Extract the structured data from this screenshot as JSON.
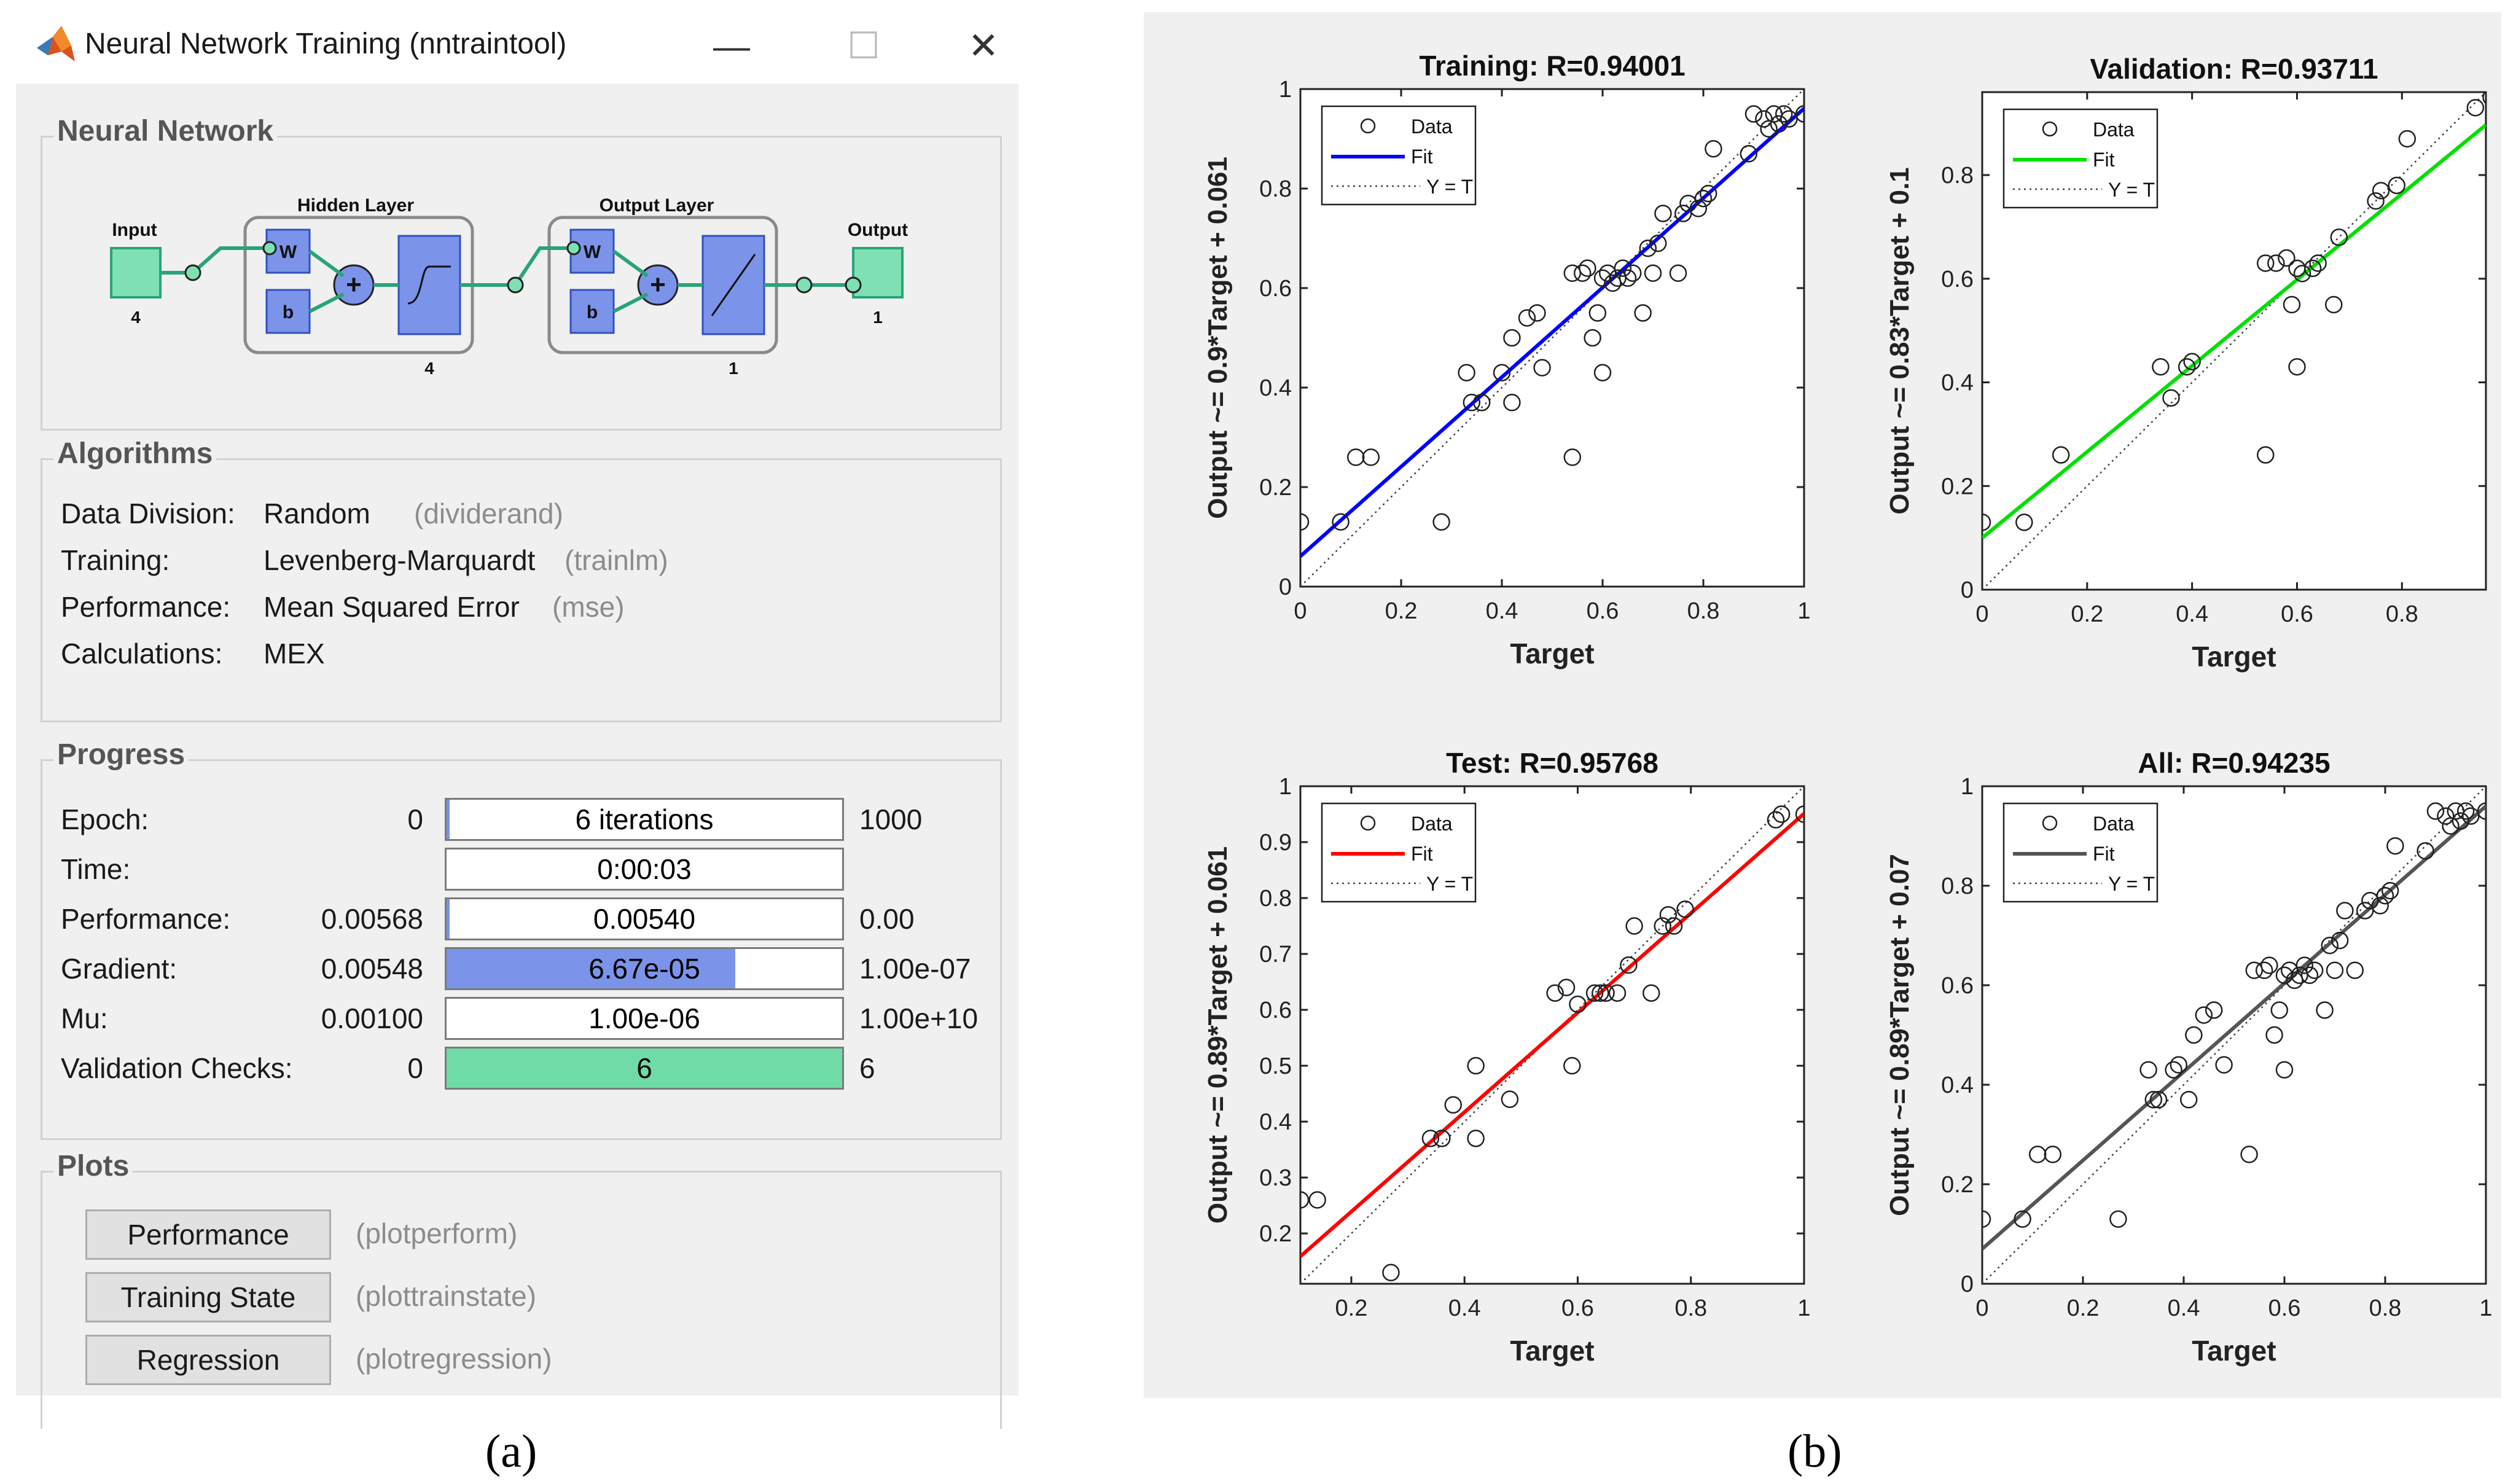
{
  "window": {
    "title": "Neural Network Training (nntraintool)",
    "controls": {
      "minimize": "—",
      "maximize": "☐",
      "close": "✕"
    },
    "logo_icon": "matlab-logo-icon"
  },
  "network": {
    "group_title": "Neural Network",
    "input_label": "Input",
    "input_size": "4",
    "hidden_label": "Hidden Layer",
    "hidden_size": "4",
    "output_layer_label": "Output Layer",
    "output_layer_size": "1",
    "output_label": "Output",
    "output_size": "1",
    "weight_symbol": "W",
    "bias_symbol": "b",
    "sum_symbol": "+"
  },
  "algorithms": {
    "group_title": "Algorithms",
    "rows": [
      {
        "label": "Data Division:",
        "value": "Random",
        "fn": "(dividerand)"
      },
      {
        "label": "Training:",
        "value": "Levenberg-Marquardt",
        "fn": "(trainlm)"
      },
      {
        "label": "Performance:",
        "value": "Mean Squared Error",
        "fn": "(mse)"
      },
      {
        "label": "Calculations:",
        "value": "MEX",
        "fn": ""
      }
    ]
  },
  "progress": {
    "group_title": "Progress",
    "rows": [
      {
        "label": "Epoch:",
        "min": "0",
        "current": "6 iterations",
        "max": "1000",
        "fill": 0.006,
        "color": "#7b93e8"
      },
      {
        "label": "Time:",
        "min": "",
        "current": "0:00:03",
        "max": "",
        "fill": 0,
        "color": "#7b93e8"
      },
      {
        "label": "Performance:",
        "min": "0.00568",
        "current": "0.00540",
        "max": "0.00",
        "fill": 0.01,
        "color": "#7b93e8"
      },
      {
        "label": "Gradient:",
        "min": "0.00548",
        "current": "6.67e-05",
        "max": "1.00e-07",
        "fill": 0.73,
        "color": "#7b93e8"
      },
      {
        "label": "Mu:",
        "min": "0.00100",
        "current": "1.00e-06",
        "max": "1.00e+10",
        "fill": 0,
        "color": "#7b93e8"
      },
      {
        "label": "Validation Checks:",
        "min": "0",
        "current": "6",
        "max": "6",
        "fill": 1.0,
        "color": "#6fdca8"
      }
    ]
  },
  "plots": {
    "group_title": "Plots",
    "buttons": [
      {
        "label": "Performance",
        "fn": "(plotperform)"
      },
      {
        "label": "Training State",
        "fn": "(plottrainstate)"
      },
      {
        "label": "Regression",
        "fn": "(plotregression)"
      }
    ]
  },
  "captions": {
    "a": "(a)",
    "b": "(b)"
  },
  "chart_data": [
    {
      "type": "scatter",
      "title": "Training: R=0.94001",
      "xlabel": "Target",
      "ylabel": "Output ~= 0.9*Target + 0.061",
      "xlim": [
        0,
        1
      ],
      "ylim": [
        0,
        1
      ],
      "xticks": [
        0,
        0.2,
        0.4,
        0.6,
        0.8,
        1
      ],
      "yticks": [
        0,
        0.2,
        0.4,
        0.6,
        0.8,
        1
      ],
      "fit": {
        "slope": 0.9,
        "intercept": 0.061,
        "color": "#0000ff"
      },
      "legend": {
        "position": "top-left",
        "entries": [
          "Data",
          "Fit",
          "Y = T"
        ]
      },
      "points": [
        [
          0,
          0.13
        ],
        [
          0.08,
          0.13
        ],
        [
          0.11,
          0.26
        ],
        [
          0.14,
          0.26
        ],
        [
          0.28,
          0.13
        ],
        [
          0.33,
          0.43
        ],
        [
          0.34,
          0.37
        ],
        [
          0.36,
          0.37
        ],
        [
          0.4,
          0.43
        ],
        [
          0.42,
          0.37
        ],
        [
          0.42,
          0.5
        ],
        [
          0.45,
          0.54
        ],
        [
          0.47,
          0.55
        ],
        [
          0.48,
          0.44
        ],
        [
          0.54,
          0.26
        ],
        [
          0.54,
          0.63
        ],
        [
          0.56,
          0.63
        ],
        [
          0.57,
          0.64
        ],
        [
          0.58,
          0.5
        ],
        [
          0.59,
          0.55
        ],
        [
          0.6,
          0.43
        ],
        [
          0.6,
          0.62
        ],
        [
          0.61,
          0.63
        ],
        [
          0.62,
          0.61
        ],
        [
          0.63,
          0.62
        ],
        [
          0.64,
          0.64
        ],
        [
          0.65,
          0.62
        ],
        [
          0.66,
          0.63
        ],
        [
          0.68,
          0.55
        ],
        [
          0.69,
          0.68
        ],
        [
          0.7,
          0.63
        ],
        [
          0.71,
          0.69
        ],
        [
          0.72,
          0.75
        ],
        [
          0.75,
          0.63
        ],
        [
          0.76,
          0.75
        ],
        [
          0.77,
          0.77
        ],
        [
          0.79,
          0.76
        ],
        [
          0.8,
          0.78
        ],
        [
          0.81,
          0.79
        ],
        [
          0.82,
          0.88
        ],
        [
          0.89,
          0.87
        ],
        [
          0.9,
          0.95
        ],
        [
          0.92,
          0.94
        ],
        [
          0.93,
          0.92
        ],
        [
          0.94,
          0.95
        ],
        [
          0.95,
          0.93
        ],
        [
          0.96,
          0.95
        ],
        [
          0.97,
          0.94
        ],
        [
          1.0,
          0.95
        ]
      ]
    },
    {
      "type": "scatter",
      "title": "Validation: R=0.93711",
      "xlabel": "Target",
      "ylabel": "Output ~= 0.83*Target + 0.1",
      "xlim": [
        0,
        0.96
      ],
      "ylim": [
        0,
        0.96
      ],
      "xticks": [
        0,
        0.2,
        0.4,
        0.6,
        0.8
      ],
      "yticks": [
        0,
        0.2,
        0.4,
        0.6,
        0.8
      ],
      "fit": {
        "slope": 0.83,
        "intercept": 0.1,
        "color": "#00e000"
      },
      "legend": {
        "position": "top-left",
        "entries": [
          "Data",
          "Fit",
          "Y = T"
        ]
      },
      "points": [
        [
          0,
          0.13
        ],
        [
          0.08,
          0.13
        ],
        [
          0.15,
          0.26
        ],
        [
          0.34,
          0.43
        ],
        [
          0.36,
          0.37
        ],
        [
          0.39,
          0.43
        ],
        [
          0.4,
          0.44
        ],
        [
          0.54,
          0.26
        ],
        [
          0.54,
          0.63
        ],
        [
          0.56,
          0.63
        ],
        [
          0.58,
          0.64
        ],
        [
          0.59,
          0.55
        ],
        [
          0.6,
          0.43
        ],
        [
          0.6,
          0.62
        ],
        [
          0.61,
          0.61
        ],
        [
          0.63,
          0.62
        ],
        [
          0.64,
          0.63
        ],
        [
          0.67,
          0.55
        ],
        [
          0.68,
          0.68
        ],
        [
          0.75,
          0.75
        ],
        [
          0.76,
          0.77
        ],
        [
          0.79,
          0.78
        ],
        [
          0.81,
          0.87
        ],
        [
          0.94,
          0.93
        ],
        [
          0.97,
          0.95
        ]
      ]
    },
    {
      "type": "scatter",
      "title": "Test: R=0.95768",
      "xlabel": "Target",
      "ylabel": "Output ~= 0.89*Target + 0.061",
      "xlim": [
        0.11,
        1
      ],
      "ylim": [
        0.11,
        1
      ],
      "xticks": [
        0.2,
        0.4,
        0.6,
        0.8,
        1
      ],
      "yticks": [
        0.2,
        0.3,
        0.4,
        0.5,
        0.6,
        0.7,
        0.8,
        0.9,
        1
      ],
      "fit": {
        "slope": 0.89,
        "intercept": 0.061,
        "color": "#ff0000"
      },
      "legend": {
        "position": "top-left",
        "entries": [
          "Data",
          "Fit",
          "Y = T"
        ]
      },
      "points": [
        [
          0.11,
          0.26
        ],
        [
          0.14,
          0.26
        ],
        [
          0.27,
          0.13
        ],
        [
          0.34,
          0.37
        ],
        [
          0.36,
          0.37
        ],
        [
          0.38,
          0.43
        ],
        [
          0.42,
          0.37
        ],
        [
          0.42,
          0.5
        ],
        [
          0.48,
          0.44
        ],
        [
          0.56,
          0.63
        ],
        [
          0.58,
          0.64
        ],
        [
          0.59,
          0.5
        ],
        [
          0.6,
          0.61
        ],
        [
          0.63,
          0.63
        ],
        [
          0.64,
          0.63
        ],
        [
          0.65,
          0.63
        ],
        [
          0.67,
          0.63
        ],
        [
          0.69,
          0.68
        ],
        [
          0.7,
          0.75
        ],
        [
          0.73,
          0.63
        ],
        [
          0.75,
          0.75
        ],
        [
          0.76,
          0.77
        ],
        [
          0.77,
          0.75
        ],
        [
          0.79,
          0.78
        ],
        [
          0.95,
          0.94
        ],
        [
          0.96,
          0.95
        ],
        [
          1.0,
          0.95
        ]
      ]
    },
    {
      "type": "scatter",
      "title": "All: R=0.94235",
      "xlabel": "Target",
      "ylabel": "Output ~= 0.89*Target + 0.07",
      "xlim": [
        0,
        1
      ],
      "ylim": [
        0,
        1
      ],
      "xticks": [
        0,
        0.2,
        0.4,
        0.6,
        0.8,
        1
      ],
      "yticks": [
        0,
        0.2,
        0.4,
        0.6,
        0.8,
        1
      ],
      "fit": {
        "slope": 0.89,
        "intercept": 0.07,
        "color": "#555555"
      },
      "legend": {
        "position": "top-left",
        "entries": [
          "Data",
          "Fit",
          "Y = T"
        ]
      },
      "points": [
        [
          0,
          0.13
        ],
        [
          0.08,
          0.13
        ],
        [
          0.11,
          0.26
        ],
        [
          0.14,
          0.26
        ],
        [
          0.27,
          0.13
        ],
        [
          0.33,
          0.43
        ],
        [
          0.34,
          0.37
        ],
        [
          0.35,
          0.37
        ],
        [
          0.38,
          0.43
        ],
        [
          0.39,
          0.44
        ],
        [
          0.41,
          0.37
        ],
        [
          0.42,
          0.5
        ],
        [
          0.44,
          0.54
        ],
        [
          0.46,
          0.55
        ],
        [
          0.48,
          0.44
        ],
        [
          0.53,
          0.26
        ],
        [
          0.54,
          0.63
        ],
        [
          0.56,
          0.63
        ],
        [
          0.57,
          0.64
        ],
        [
          0.58,
          0.5
        ],
        [
          0.59,
          0.55
        ],
        [
          0.6,
          0.43
        ],
        [
          0.6,
          0.62
        ],
        [
          0.61,
          0.63
        ],
        [
          0.62,
          0.61
        ],
        [
          0.63,
          0.62
        ],
        [
          0.64,
          0.64
        ],
        [
          0.65,
          0.62
        ],
        [
          0.66,
          0.63
        ],
        [
          0.68,
          0.55
        ],
        [
          0.69,
          0.68
        ],
        [
          0.7,
          0.63
        ],
        [
          0.71,
          0.69
        ],
        [
          0.72,
          0.75
        ],
        [
          0.74,
          0.63
        ],
        [
          0.76,
          0.75
        ],
        [
          0.77,
          0.77
        ],
        [
          0.79,
          0.76
        ],
        [
          0.8,
          0.78
        ],
        [
          0.81,
          0.79
        ],
        [
          0.82,
          0.88
        ],
        [
          0.88,
          0.87
        ],
        [
          0.9,
          0.95
        ],
        [
          0.92,
          0.94
        ],
        [
          0.93,
          0.92
        ],
        [
          0.94,
          0.95
        ],
        [
          0.95,
          0.93
        ],
        [
          0.96,
          0.95
        ],
        [
          0.97,
          0.94
        ],
        [
          1.0,
          0.95
        ]
      ]
    }
  ]
}
